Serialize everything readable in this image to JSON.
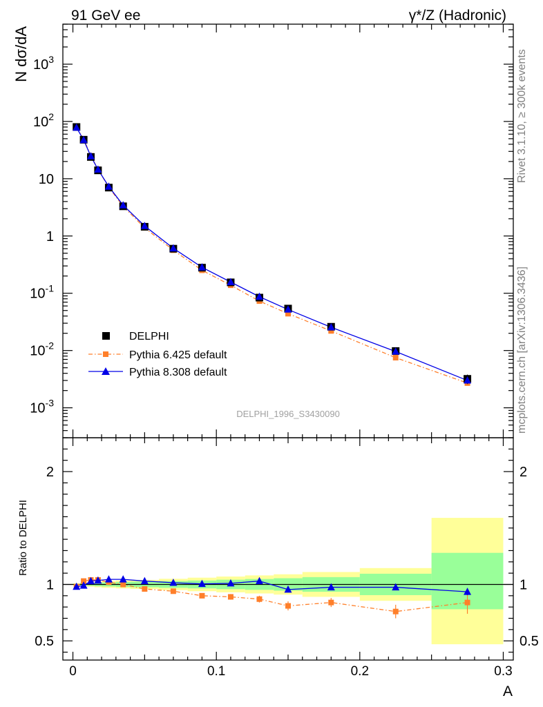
{
  "header": {
    "left": "91 GeV ee",
    "right": "γ*/Z (Hadronic)"
  },
  "side_notes": {
    "rivet": "Rivet 3.1.10, ≥ 300k events",
    "mcplots": "mcplots.cern.ch [arXiv:1306.3436]"
  },
  "analysis_id": "DELPHI_1996_S3430090",
  "chart_data": [
    {
      "type": "scatter",
      "panel": "main",
      "title": "",
      "ylabel": "N dσ/dA",
      "yscale": "log",
      "ylim": [
        0.0003,
        5000
      ],
      "xlim": [
        -0.007,
        0.307
      ],
      "y_tick_labels": [
        "10^-3",
        "10^-2",
        "10^-1",
        "1",
        "10",
        "10^2",
        "10^3"
      ],
      "legend_position": "bottom-left",
      "series": [
        {
          "name": "DELPHI",
          "style": "marker",
          "color": "#000000",
          "x": [
            0.0025,
            0.0075,
            0.0125,
            0.0175,
            0.025,
            0.035,
            0.05,
            0.07,
            0.09,
            0.11,
            0.13,
            0.15,
            0.18,
            0.225,
            0.275
          ],
          "y": [
            80,
            48,
            24,
            14,
            7,
            3.3,
            1.45,
            0.6,
            0.28,
            0.155,
            0.084,
            0.054,
            0.026,
            0.0098,
            0.0032
          ],
          "yerr": [
            6,
            3,
            1.5,
            0.8,
            0.4,
            0.18,
            0.08,
            0.04,
            0.02,
            0.012,
            0.007,
            0.005,
            0.003,
            0.0012,
            0.0006
          ]
        },
        {
          "name": "Pythia 6.425 default",
          "style": "dashdot-square",
          "color": "#ff7f2a",
          "x": [
            0.0025,
            0.0075,
            0.0125,
            0.0175,
            0.025,
            0.035,
            0.05,
            0.07,
            0.09,
            0.11,
            0.13,
            0.15,
            0.18,
            0.225,
            0.275
          ],
          "y": [
            78,
            49.5,
            25,
            14.6,
            7.1,
            3.3,
            1.39,
            0.565,
            0.252,
            0.138,
            0.073,
            0.044,
            0.022,
            0.0075,
            0.0027
          ]
        },
        {
          "name": "Pythia 8.308 default",
          "style": "solid-triangle",
          "color": "#0000e6",
          "x": [
            0.0025,
            0.0075,
            0.0125,
            0.0175,
            0.025,
            0.035,
            0.05,
            0.07,
            0.09,
            0.11,
            0.13,
            0.15,
            0.18,
            0.225,
            0.275
          ],
          "y": [
            78,
            47.5,
            24.7,
            14.5,
            7.3,
            3.45,
            1.5,
            0.61,
            0.284,
            0.157,
            0.087,
            0.052,
            0.0255,
            0.0096,
            0.003
          ]
        }
      ]
    },
    {
      "type": "line",
      "panel": "ratio",
      "ylabel": "Ratio to DELPHI",
      "xlabel": "A",
      "ylim": [
        0.33,
        2.3
      ],
      "xlim": [
        -0.007,
        0.307
      ],
      "x_tick_labels": [
        "0",
        "0.1",
        "0.2",
        "0.3"
      ],
      "y_tick_labels": [
        "0.5",
        "1",
        "2"
      ],
      "bands": {
        "edges": [
          0,
          0.005,
          0.01,
          0.015,
          0.02,
          0.03,
          0.04,
          0.06,
          0.08,
          0.1,
          0.12,
          0.14,
          0.16,
          0.2,
          0.25,
          0.3
        ],
        "green_lo": [
          0.995,
          0.99,
          0.988,
          0.985,
          0.982,
          0.978,
          0.975,
          0.97,
          0.965,
          0.958,
          0.952,
          0.945,
          0.935,
          0.905,
          0.78
        ],
        "green_hi": [
          1.005,
          1.01,
          1.012,
          1.015,
          1.018,
          1.022,
          1.025,
          1.03,
          1.035,
          1.042,
          1.048,
          1.055,
          1.065,
          1.095,
          1.28
        ],
        "yellow_lo": [
          0.99,
          0.985,
          0.98,
          0.975,
          0.97,
          0.965,
          0.96,
          0.95,
          0.94,
          0.93,
          0.92,
          0.91,
          0.89,
          0.855,
          0.47
        ],
        "yellow_hi": [
          1.01,
          1.015,
          1.02,
          1.025,
          1.03,
          1.035,
          1.04,
          1.05,
          1.06,
          1.07,
          1.08,
          1.09,
          1.11,
          1.145,
          1.59
        ]
      },
      "series": [
        {
          "name": "Pythia 6.425 default",
          "color": "#ff7f2a",
          "x": [
            0.0025,
            0.0075,
            0.0125,
            0.0175,
            0.025,
            0.035,
            0.05,
            0.07,
            0.09,
            0.11,
            0.13,
            0.15,
            0.18,
            0.225,
            0.275
          ],
          "y": [
            0.98,
            1.03,
            1.04,
            1.04,
            1.02,
            1.0,
            0.96,
            0.94,
            0.9,
            0.89,
            0.87,
            0.81,
            0.84,
            0.76,
            0.84
          ],
          "yerr": [
            0.01,
            0.01,
            0.01,
            0.01,
            0.01,
            0.01,
            0.012,
            0.015,
            0.02,
            0.025,
            0.03,
            0.04,
            0.04,
            0.06,
            0.1
          ]
        },
        {
          "name": "Pythia 8.308 default",
          "color": "#0000e6",
          "x": [
            0.0025,
            0.0075,
            0.0125,
            0.0175,
            0.025,
            0.035,
            0.05,
            0.07,
            0.09,
            0.11,
            0.13,
            0.15,
            0.18,
            0.225,
            0.275
          ],
          "y": [
            0.98,
            0.99,
            1.03,
            1.035,
            1.045,
            1.045,
            1.03,
            1.015,
            1.005,
            1.01,
            1.03,
            0.955,
            0.975,
            0.975,
            0.935
          ],
          "yerr": [
            0.005,
            0.005,
            0.005,
            0.005,
            0.006,
            0.007,
            0.008,
            0.01,
            0.01,
            0.012,
            0.015,
            0.015,
            0.02,
            0.02,
            0.03
          ]
        }
      ]
    }
  ]
}
